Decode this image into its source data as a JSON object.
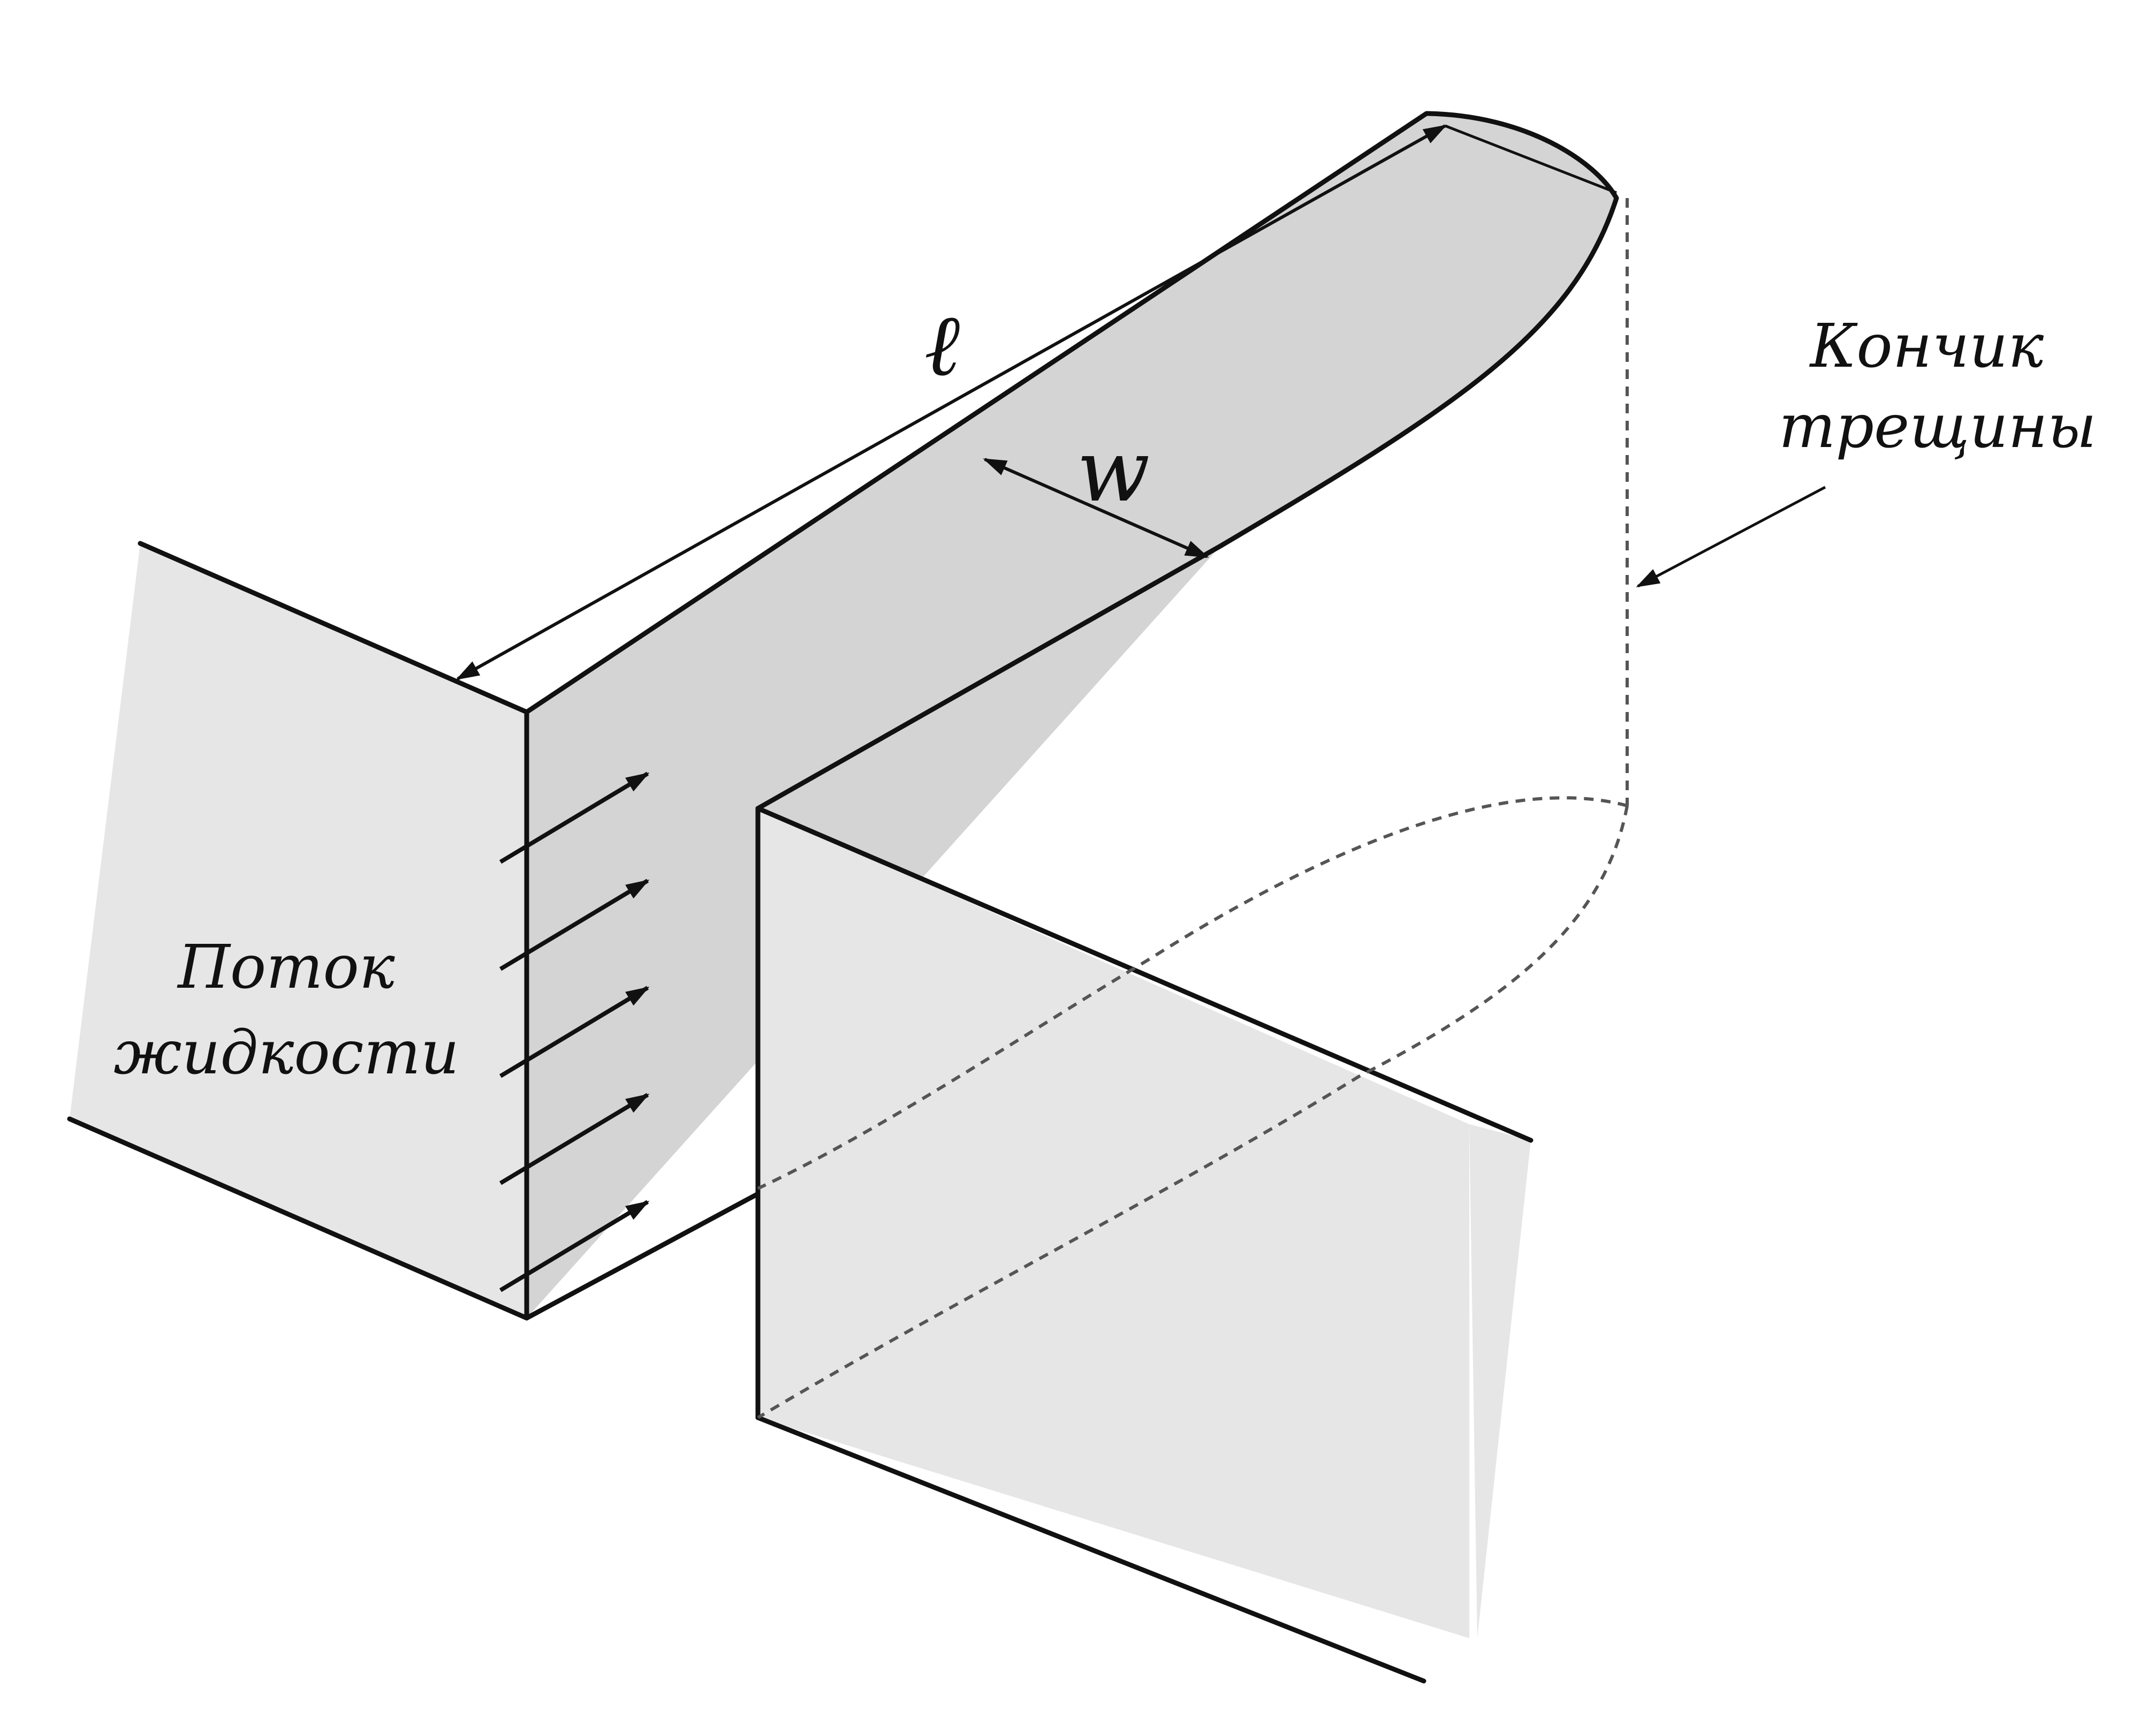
{
  "labels": {
    "length": "ℓ",
    "width": "w",
    "tip_line1": "Кончик",
    "tip_line2": "трещины",
    "flow_line1": "Поток",
    "flow_line2": "жидкости"
  },
  "colors": {
    "panel_fill": "#e6e6e6",
    "crack_fill": "#d4d4d4",
    "line": "#111111",
    "background": "#ffffff"
  },
  "flow_arrow_count": 5
}
